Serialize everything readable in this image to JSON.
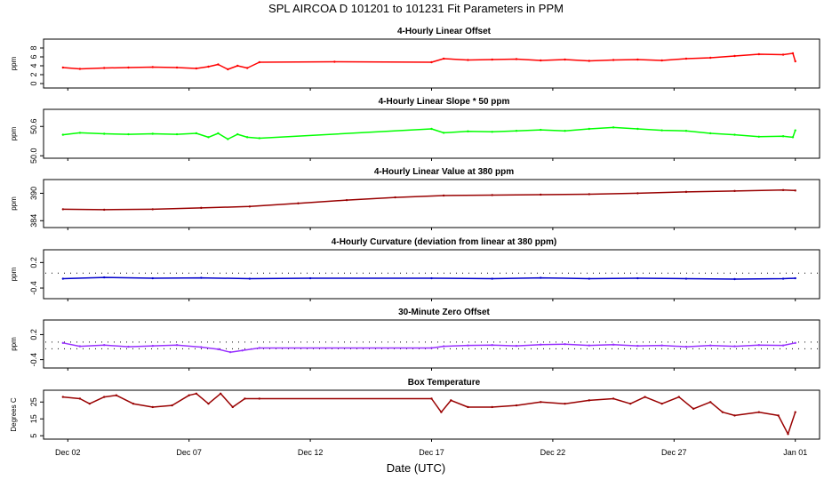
{
  "title": "SPL   AIRCOA D   101201 to 101231   Fit Parameters in PPM",
  "xlabel": "Date (UTC)",
  "x_ticks": [
    "Dec 02",
    "Dec 07",
    "Dec 12",
    "Dec 17",
    "Dec 22",
    "Dec 27",
    "Jan 01"
  ],
  "chart_data": [
    {
      "type": "line",
      "title": "4-Hourly Linear Offset",
      "ylabel": "ppm",
      "y_ticks": [
        "0",
        "2",
        "4",
        "6",
        "8"
      ],
      "ylim": [
        -1,
        10
      ],
      "color": "#ff0000",
      "x": [
        1.8,
        2.5,
        3.5,
        4.5,
        5.5,
        6.5,
        7.3,
        7.8,
        8.2,
        8.6,
        9.0,
        9.4,
        9.9,
        13.0,
        17.0,
        17.5,
        18.5,
        19.5,
        20.5,
        21.5,
        22.5,
        23.5,
        24.5,
        25.5,
        26.5,
        27.5,
        28.5,
        29.5,
        30.5,
        31.5,
        31.9,
        32.0
      ],
      "values": [
        3.6,
        3.3,
        3.5,
        3.6,
        3.7,
        3.6,
        3.4,
        3.8,
        4.3,
        3.2,
        4.0,
        3.5,
        4.8,
        4.9,
        4.8,
        5.6,
        5.3,
        5.4,
        5.5,
        5.2,
        5.4,
        5.1,
        5.3,
        5.4,
        5.2,
        5.6,
        5.8,
        6.2,
        6.6,
        6.5,
        6.8,
        5.0
      ]
    },
    {
      "type": "line",
      "title": "4-Hourly Linear Slope * 50 ppm",
      "ylabel": "ppm",
      "y_ticks": [
        "50.0",
        "50.6"
      ],
      "ylim": [
        49.95,
        50.95
      ],
      "color": "#00ff00",
      "x": [
        1.8,
        2.5,
        3.5,
        4.5,
        5.5,
        6.5,
        7.3,
        7.8,
        8.2,
        8.6,
        9.0,
        9.4,
        9.9,
        17.0,
        17.5,
        18.5,
        19.5,
        20.5,
        21.5,
        22.5,
        23.5,
        24.5,
        25.5,
        26.5,
        27.5,
        28.5,
        29.5,
        30.5,
        31.5,
        31.9,
        32.0
      ],
      "values": [
        50.43,
        50.47,
        50.45,
        50.44,
        50.45,
        50.44,
        50.46,
        50.38,
        50.46,
        50.34,
        50.44,
        50.38,
        50.36,
        50.55,
        50.47,
        50.5,
        50.49,
        50.51,
        50.53,
        50.51,
        50.55,
        50.58,
        50.55,
        50.52,
        50.51,
        50.46,
        50.43,
        50.39,
        50.4,
        50.38,
        50.52
      ]
    },
    {
      "type": "line",
      "title": "4-Hourly Linear Value at 380 ppm",
      "ylabel": "ppm",
      "y_ticks": [
        "384",
        "390"
      ],
      "ylim": [
        382.5,
        393
      ],
      "color": "#990000",
      "x": [
        1.8,
        3.5,
        5.5,
        7.5,
        9.5,
        11.5,
        13.5,
        15.5,
        17.5,
        19.5,
        21.5,
        23.5,
        25.5,
        27.5,
        29.5,
        31.5,
        32.0
      ],
      "values": [
        386.5,
        386.4,
        386.5,
        386.8,
        387.1,
        387.8,
        388.5,
        389.1,
        389.5,
        389.6,
        389.7,
        389.8,
        390.0,
        390.3,
        390.5,
        390.7,
        390.6
      ]
    },
    {
      "type": "line",
      "title": "4-Hourly Curvature (deviation from linear at 380 ppm)",
      "ylabel": "ppm",
      "y_ticks": [
        "-0.4",
        "0.2"
      ],
      "ylim": [
        -0.65,
        0.5
      ],
      "color": "#0000cc",
      "x": [
        1.8,
        3.5,
        5.5,
        7.5,
        9.5,
        12.0,
        17.0,
        19.5,
        21.5,
        23.5,
        25.5,
        27.5,
        29.5,
        31.5,
        32.0
      ],
      "values": [
        -0.18,
        -0.15,
        -0.17,
        -0.16,
        -0.18,
        -0.17,
        -0.17,
        -0.18,
        -0.16,
        -0.18,
        -0.17,
        -0.18,
        -0.19,
        -0.18,
        -0.17
      ],
      "reference_line": -0.05
    },
    {
      "type": "line",
      "title": "30-Minute Zero Offset",
      "ylabel": "ppm",
      "y_ticks": [
        "-0.4",
        "0.2"
      ],
      "ylim": [
        -0.6,
        0.55
      ],
      "color": "#9933ff",
      "x": [
        1.8,
        2.5,
        3.5,
        4.5,
        5.5,
        6.5,
        7.5,
        8.2,
        8.7,
        9.2,
        9.9,
        17.0,
        17.5,
        18.5,
        19.5,
        20.5,
        21.5,
        22.5,
        23.5,
        24.5,
        25.5,
        26.5,
        27.5,
        28.5,
        29.5,
        30.5,
        31.5,
        32.0
      ],
      "values": [
        0.0,
        -0.08,
        -0.05,
        -0.09,
        -0.07,
        -0.05,
        -0.1,
        -0.15,
        -0.22,
        -0.18,
        -0.12,
        -0.12,
        -0.08,
        -0.06,
        -0.05,
        -0.07,
        -0.04,
        -0.03,
        -0.06,
        -0.04,
        -0.07,
        -0.06,
        -0.09,
        -0.06,
        -0.08,
        -0.05,
        -0.06,
        0.0
      ],
      "reference_lines": [
        0.02,
        -0.14
      ]
    },
    {
      "type": "line",
      "title": "Box Temperature",
      "ylabel": "Degrees C",
      "y_ticks": [
        "5",
        "15",
        "25"
      ],
      "ylim": [
        3,
        32
      ],
      "color": "#990000",
      "x": [
        1.8,
        2.5,
        2.9,
        3.5,
        4.0,
        4.7,
        5.5,
        6.3,
        7.0,
        7.3,
        7.8,
        8.3,
        8.8,
        9.3,
        9.9,
        17.0,
        17.4,
        17.8,
        18.5,
        19.5,
        20.5,
        21.5,
        22.5,
        23.5,
        24.5,
        25.2,
        25.8,
        26.5,
        27.2,
        27.8,
        28.5,
        29.0,
        29.5,
        30.5,
        31.3,
        31.7,
        32.0
      ],
      "values": [
        28,
        27,
        24,
        28,
        29,
        24,
        22,
        23,
        29,
        30,
        24,
        30,
        22,
        27,
        27,
        27,
        19,
        26,
        22,
        22,
        23,
        25,
        24,
        26,
        27,
        24,
        28,
        24,
        28,
        21,
        25,
        19,
        17,
        19,
        17,
        6,
        19
      ]
    }
  ]
}
